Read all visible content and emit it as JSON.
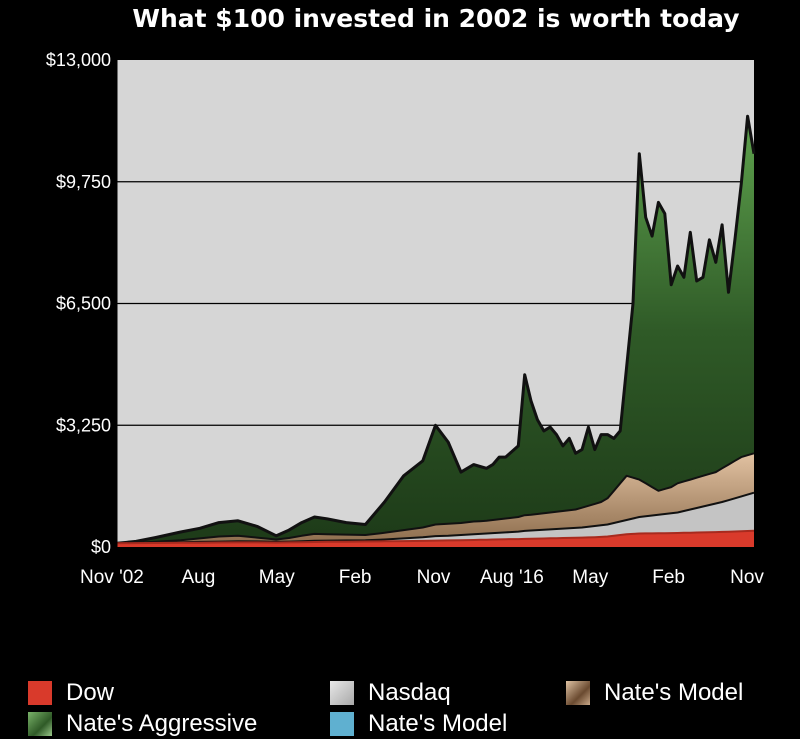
{
  "chart_data": {
    "type": "area",
    "title": "What $100 invested in 2002 is worth today",
    "xlabel": "",
    "ylabel": "",
    "ylim": [
      0,
      13000
    ],
    "y_ticks": [
      "$0",
      "$3,250",
      "$6,500",
      "$9,750",
      "$13,000"
    ],
    "y_tick_values": [
      0,
      3250,
      6500,
      9750,
      13000
    ],
    "x_tick_labels": [
      "Nov '02",
      "Aug",
      "May",
      "Feb",
      "Nov",
      "Aug '16",
      "May",
      "Feb",
      "Nov"
    ],
    "grid": "horizontal",
    "legend_position": "bottom",
    "x": [
      0,
      0.03,
      0.06,
      0.1,
      0.13,
      0.16,
      0.19,
      0.22,
      0.25,
      0.27,
      0.29,
      0.31,
      0.33,
      0.36,
      0.39,
      0.42,
      0.45,
      0.48,
      0.5,
      0.52,
      0.54,
      0.56,
      0.57,
      0.58,
      0.59,
      0.6,
      0.61,
      0.63,
      0.64,
      0.65,
      0.66,
      0.67,
      0.68,
      0.69,
      0.7,
      0.71,
      0.72,
      0.73,
      0.74,
      0.75,
      0.76,
      0.77,
      0.78,
      0.79,
      0.8,
      0.81,
      0.82,
      0.83,
      0.84,
      0.85,
      0.86,
      0.87,
      0.88,
      0.89,
      0.9,
      0.91,
      0.92,
      0.93,
      0.94,
      0.95,
      0.96,
      0.97,
      0.98,
      0.99,
      1.0
    ],
    "series": [
      {
        "name": "Nate's Aggressive",
        "color": "#3f7a35",
        "values": [
          100,
          150,
          250,
          400,
          500,
          650,
          700,
          550,
          300,
          450,
          650,
          800,
          750,
          650,
          600,
          1200,
          1900,
          2300,
          3250,
          2800,
          2000,
          2200,
          2150,
          2100,
          2200,
          2400,
          2400,
          2700,
          4600,
          3900,
          3400,
          3100,
          3200,
          3000,
          2700,
          2900,
          2500,
          2600,
          3200,
          2600,
          3000,
          3000,
          2900,
          3100,
          4800,
          6500,
          10500,
          8800,
          8300,
          9200,
          8900,
          7000,
          7500,
          7200,
          8400,
          7100,
          7200,
          8200,
          7600,
          8600,
          6800,
          8200,
          9700,
          11500,
          10500
        ]
      },
      {
        "name": "Nate's Model",
        "color": "#c9a78a",
        "values": [
          100,
          110,
          140,
          180,
          230,
          280,
          300,
          250,
          200,
          240,
          300,
          350,
          340,
          330,
          320,
          380,
          450,
          520,
          600,
          620,
          640,
          680,
          690,
          700,
          720,
          740,
          760,
          800,
          850,
          860,
          880,
          900,
          920,
          940,
          960,
          980,
          1000,
          1050,
          1100,
          1150,
          1200,
          1300,
          1500,
          1700,
          1900,
          1850,
          1800,
          1700,
          1600,
          1500,
          1550,
          1600,
          1700,
          1750,
          1800,
          1850,
          1900,
          1950,
          2000,
          2100,
          2200,
          2300,
          2400,
          2450,
          2500
        ]
      },
      {
        "name": "Nasdaq",
        "color": "#c8c8c8",
        "values": [
          100,
          105,
          115,
          125,
          135,
          145,
          155,
          150,
          140,
          145,
          155,
          165,
          170,
          175,
          180,
          200,
          230,
          260,
          290,
          300,
          320,
          340,
          350,
          360,
          370,
          380,
          390,
          410,
          430,
          440,
          450,
          460,
          470,
          480,
          490,
          500,
          510,
          520,
          540,
          560,
          580,
          600,
          640,
          680,
          720,
          760,
          800,
          820,
          840,
          860,
          880,
          900,
          920,
          960,
          1000,
          1040,
          1080,
          1120,
          1160,
          1200,
          1250,
          1300,
          1350,
          1400,
          1450
        ]
      },
      {
        "name": "Dow",
        "color": "#d93a2b",
        "values": [
          100,
          104,
          108,
          112,
          116,
          120,
          124,
          122,
          118,
          122,
          128,
          134,
          138,
          142,
          146,
          152,
          158,
          164,
          170,
          176,
          182,
          188,
          192,
          196,
          200,
          204,
          208,
          212,
          216,
          220,
          224,
          228,
          232,
          236,
          240,
          244,
          248,
          252,
          256,
          262,
          270,
          280,
          300,
          320,
          340,
          350,
          360,
          362,
          364,
          366,
          368,
          370,
          374,
          378,
          382,
          386,
          390,
          394,
          398,
          402,
          408,
          414,
          420,
          426,
          432
        ]
      }
    ]
  },
  "legend": {
    "items": [
      {
        "label": "Dow",
        "color": "#d93a2b",
        "icon": "red-swatch-icon"
      },
      {
        "label": "Nasdaq",
        "color": "#c8c8c8",
        "icon": "gray-swatch-icon"
      },
      {
        "label": "Nate's Model",
        "color": "#8a6a4a",
        "icon": "money-swatch-icon"
      },
      {
        "label": "Nate's Aggressive",
        "color": "#3f7a35",
        "icon": "dollar-swatch-icon"
      },
      {
        "label": "Nate's Model",
        "color": "#5fb0d0",
        "icon": "blue-swatch-icon"
      }
    ]
  }
}
